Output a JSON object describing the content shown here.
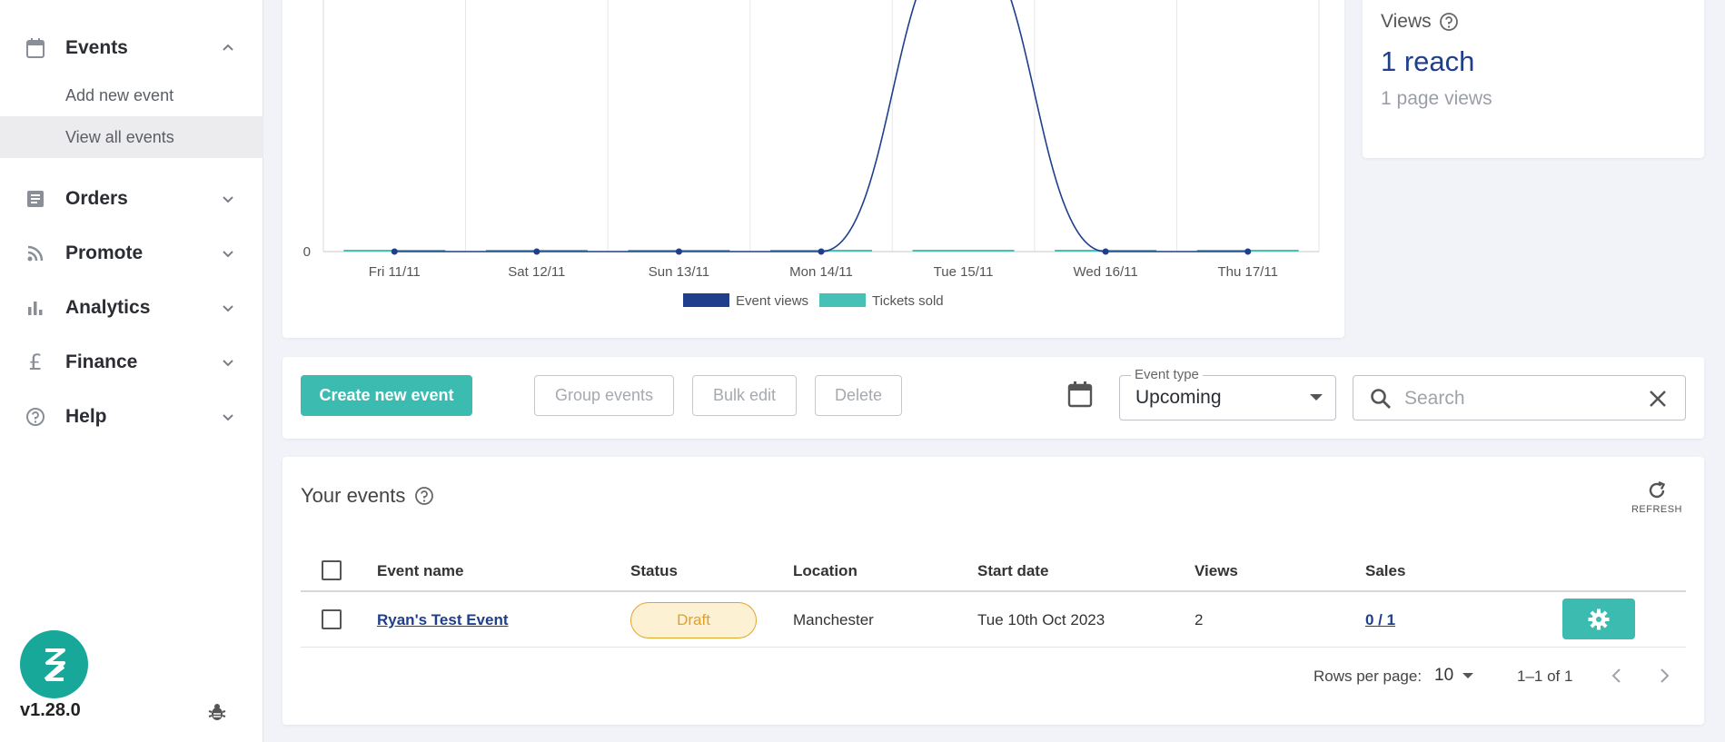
{
  "sidebar": {
    "events": {
      "label": "Events",
      "icon": "calendar-icon"
    },
    "sub_items": [
      {
        "label": "Add new event"
      },
      {
        "label": "View all events",
        "active": true
      }
    ],
    "groups": [
      {
        "label": "Orders",
        "icon": "receipt-icon"
      },
      {
        "label": "Promote",
        "icon": "rss-icon"
      },
      {
        "label": "Analytics",
        "icon": "bar-chart-icon"
      },
      {
        "label": "Finance",
        "icon": "pound-icon"
      },
      {
        "label": "Help",
        "icon": "help-icon"
      }
    ],
    "version": "v1.28.0"
  },
  "chart_data": {
    "type": "line",
    "categories": [
      "Fri 11/11",
      "Sat 12/11",
      "Sun 13/11",
      "Mon 14/11",
      "Tue 15/11",
      "Wed 16/11",
      "Thu 17/11"
    ],
    "series": [
      {
        "name": "Event views",
        "values": [
          0,
          0,
          0,
          0,
          1,
          0,
          0
        ],
        "color": "#1f3f8c"
      },
      {
        "name": "Tickets sold",
        "values": [
          0,
          0,
          0,
          0,
          0,
          0,
          0
        ],
        "color": "#46c1b6"
      }
    ],
    "y_tick_labels": [
      "0"
    ]
  },
  "views": {
    "title": "Views",
    "reach": "1 reach",
    "page_views": "1 page views"
  },
  "toolbar": {
    "create_label": "Create new event",
    "group_label": "Group events",
    "bulk_label": "Bulk edit",
    "delete_label": "Delete",
    "event_type_legend": "Event type",
    "event_type_value": "Upcoming",
    "search_placeholder": "Search"
  },
  "table": {
    "title": "Your events",
    "refresh_label": "REFRESH",
    "columns": [
      "Event name",
      "Status",
      "Location",
      "Start date",
      "Views",
      "Sales"
    ],
    "rows": [
      {
        "name": "Ryan's Test Event",
        "status": "Draft",
        "location": "Manchester",
        "start": "Tue 10th Oct 2023",
        "views": "2",
        "sales": "0 / 1"
      }
    ],
    "rows_per_page_label": "Rows per page:",
    "rows_per_page": "10",
    "range": "1–1 of 1"
  },
  "colors": {
    "accent": "#3cbcb1",
    "brand_blue": "#1f3f8c",
    "draft": "#e0a12a"
  }
}
